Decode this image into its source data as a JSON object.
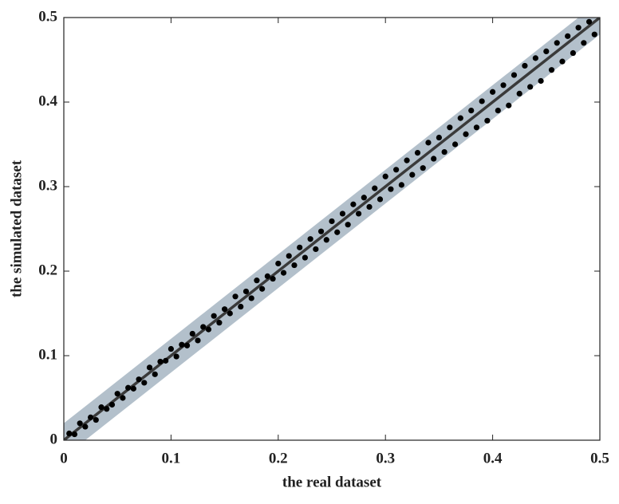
{
  "chart_data": {
    "type": "scatter",
    "xlabel": "the real dataset",
    "ylabel": "the simulated dataset",
    "xlim": [
      0,
      0.5
    ],
    "ylim": [
      0,
      0.5
    ],
    "xticks": [
      0,
      0.1,
      0.2,
      0.3,
      0.4,
      0.5
    ],
    "yticks": [
      0,
      0.1,
      0.2,
      0.3,
      0.4,
      0.5
    ],
    "color": "#000000",
    "x": [
      0.005,
      0.01,
      0.015,
      0.02,
      0.025,
      0.03,
      0.035,
      0.04,
      0.045,
      0.05,
      0.055,
      0.06,
      0.065,
      0.07,
      0.075,
      0.08,
      0.085,
      0.09,
      0.095,
      0.1,
      0.105,
      0.11,
      0.115,
      0.12,
      0.125,
      0.13,
      0.135,
      0.14,
      0.145,
      0.15,
      0.155,
      0.16,
      0.165,
      0.17,
      0.175,
      0.18,
      0.185,
      0.19,
      0.195,
      0.2,
      0.205,
      0.21,
      0.215,
      0.22,
      0.225,
      0.23,
      0.235,
      0.24,
      0.245,
      0.25,
      0.255,
      0.26,
      0.265,
      0.27,
      0.275,
      0.28,
      0.285,
      0.29,
      0.295,
      0.3,
      0.305,
      0.31,
      0.315,
      0.32,
      0.325,
      0.33,
      0.335,
      0.34,
      0.345,
      0.35,
      0.355,
      0.36,
      0.365,
      0.37,
      0.375,
      0.38,
      0.385,
      0.39,
      0.395,
      0.4,
      0.405,
      0.41,
      0.415,
      0.42,
      0.425,
      0.43,
      0.435,
      0.44,
      0.445,
      0.45,
      0.455,
      0.46,
      0.465,
      0.47,
      0.475,
      0.48,
      0.485,
      0.49,
      0.495
    ],
    "y": [
      0.008,
      0.007,
      0.02,
      0.016,
      0.027,
      0.024,
      0.039,
      0.037,
      0.042,
      0.055,
      0.05,
      0.062,
      0.061,
      0.072,
      0.068,
      0.086,
      0.078,
      0.093,
      0.094,
      0.108,
      0.099,
      0.113,
      0.112,
      0.126,
      0.118,
      0.134,
      0.131,
      0.147,
      0.139,
      0.155,
      0.15,
      0.17,
      0.158,
      0.176,
      0.168,
      0.189,
      0.179,
      0.194,
      0.191,
      0.209,
      0.198,
      0.218,
      0.207,
      0.228,
      0.216,
      0.238,
      0.226,
      0.247,
      0.237,
      0.259,
      0.246,
      0.268,
      0.255,
      0.279,
      0.268,
      0.287,
      0.276,
      0.298,
      0.285,
      0.312,
      0.297,
      0.32,
      0.302,
      0.331,
      0.314,
      0.34,
      0.322,
      0.352,
      0.333,
      0.358,
      0.341,
      0.37,
      0.35,
      0.381,
      0.362,
      0.39,
      0.37,
      0.401,
      0.378,
      0.412,
      0.39,
      0.42,
      0.396,
      0.432,
      0.41,
      0.443,
      0.418,
      0.452,
      0.425,
      0.46,
      0.438,
      0.47,
      0.448,
      0.478,
      0.458,
      0.488,
      0.47,
      0.495,
      0.48
    ],
    "fit_line": {
      "x": [
        0,
        0.5
      ],
      "y": [
        0,
        0.5
      ],
      "color": "#3a3a3a"
    },
    "band": {
      "x": [
        0,
        0.5
      ],
      "lower": [
        -0.02,
        0.48
      ],
      "upper": [
        0.02,
        0.52
      ],
      "color": "#9aabb9"
    }
  }
}
